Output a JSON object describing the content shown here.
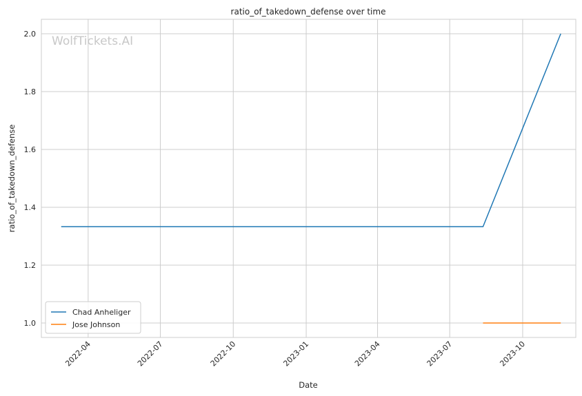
{
  "chart_data": {
    "type": "line",
    "title": "ratio_of_takedown_defense over time",
    "xlabel": "Date",
    "ylabel": "ratio_of_takedown_defense",
    "watermark": "WolfTickets.AI",
    "x_range": [
      "2022-02-01",
      "2023-12-07"
    ],
    "ylim": [
      0.95,
      2.05
    ],
    "x_ticks": [
      "2022-04",
      "2022-07",
      "2022-10",
      "2023-01",
      "2023-04",
      "2023-07",
      "2023-10"
    ],
    "y_ticks": [
      "1.0",
      "1.2",
      "1.4",
      "1.6",
      "1.8",
      "2.0"
    ],
    "grid": true,
    "legend_position": "lower-left",
    "series": [
      {
        "name": "Chad Anheliger",
        "color": "#1f77b4",
        "points": [
          {
            "x": "2022-02-26",
            "y": 1.333
          },
          {
            "x": "2023-08-12",
            "y": 1.333
          },
          {
            "x": "2023-11-18",
            "y": 2.0
          }
        ]
      },
      {
        "name": "Jose Johnson",
        "color": "#ff7f0e",
        "points": [
          {
            "x": "2023-08-12",
            "y": 1.0
          },
          {
            "x": "2023-11-18",
            "y": 1.0
          }
        ]
      }
    ]
  }
}
